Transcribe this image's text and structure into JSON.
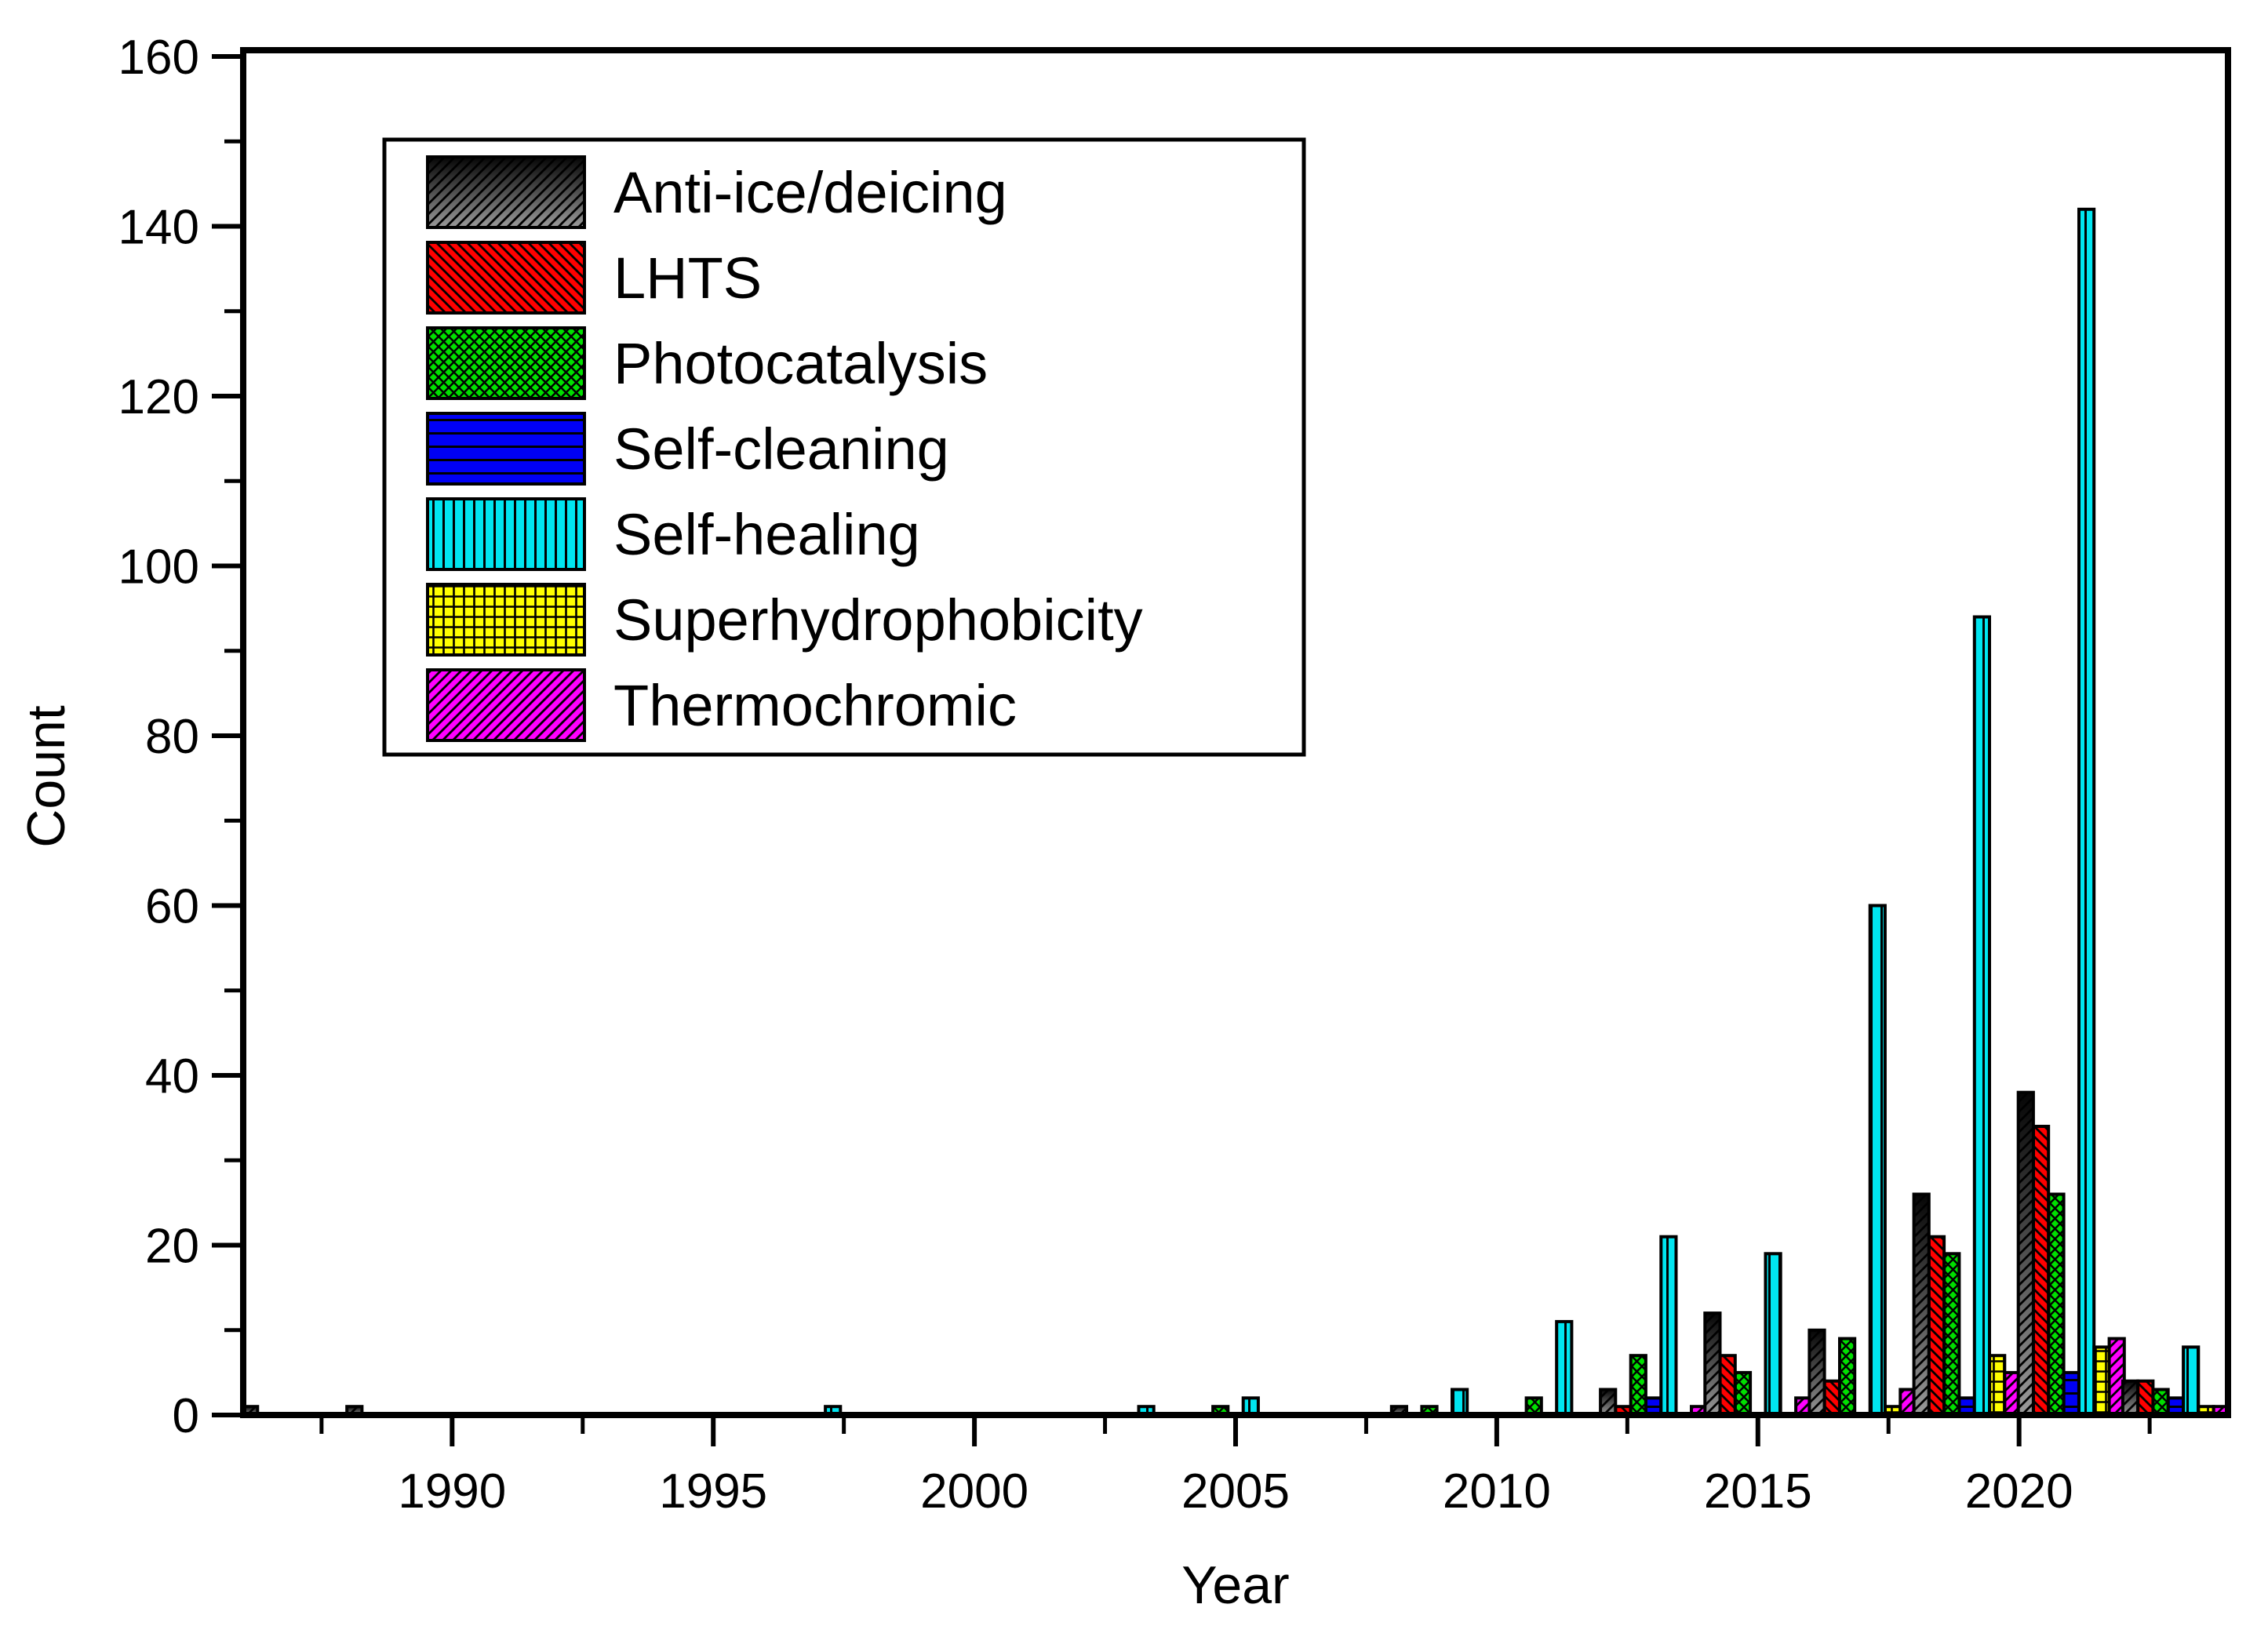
{
  "chart_data": {
    "type": "bar",
    "title": "",
    "xlabel": "Year",
    "ylabel": "Count",
    "x_range": [
      1986,
      2024
    ],
    "ylim": [
      0,
      160
    ],
    "grid": false,
    "legend_position": "top-left",
    "x_major_ticks": [
      1990,
      1995,
      2000,
      2005,
      2010,
      2015,
      2020
    ],
    "x_minor_ticks": [
      1987.5,
      1992.5,
      1997.5,
      2002.5,
      2007.5,
      2012.5,
      2017.5,
      2022.5
    ],
    "y_major_ticks": [
      0,
      20,
      40,
      60,
      80,
      100,
      120,
      140,
      160
    ],
    "y_minor_ticks": [
      10,
      30,
      50,
      70,
      90,
      110,
      130,
      150
    ],
    "categories": [
      1987,
      1989,
      1997,
      2003,
      2005,
      2009,
      2011,
      2013,
      2015,
      2017,
      2019,
      2021,
      2023
    ],
    "series": [
      {
        "name": "Anti-ice/deicing",
        "color": "gradient:#050505-#9a9a9a",
        "pattern": "diagonal-forward",
        "values": [
          1,
          1,
          0,
          0,
          0,
          1,
          0,
          3,
          12,
          10,
          26,
          38,
          4
        ]
      },
      {
        "name": "LHTS",
        "color": "#ff0000",
        "pattern": "diagonal-back",
        "values": [
          0,
          0,
          0,
          0,
          0,
          0,
          0,
          1,
          7,
          4,
          21,
          34,
          4
        ]
      },
      {
        "name": "Photocatalysis",
        "color": "#00df00",
        "pattern": "cross-diagonal",
        "values": [
          0,
          0,
          0,
          0,
          1,
          1,
          2,
          7,
          5,
          9,
          19,
          26,
          3
        ]
      },
      {
        "name": "Self-cleaning",
        "color": "#0000f5",
        "pattern": "horizontal-lines",
        "values": [
          0,
          0,
          0,
          0,
          0,
          0,
          0,
          2,
          0,
          0,
          2,
          5,
          2
        ]
      },
      {
        "name": "Self-healing",
        "color": "#00e5f0",
        "pattern": "vertical-lines",
        "values": [
          0,
          0,
          1,
          1,
          2,
          3,
          11,
          21,
          19,
          60,
          94,
          142,
          8
        ]
      },
      {
        "name": "Superhydrophobicity",
        "color": "#ffff00",
        "pattern": "grid",
        "values": [
          0,
          0,
          0,
          0,
          0,
          0,
          0,
          0,
          0,
          1,
          7,
          8,
          1
        ]
      },
      {
        "name": "Thermochromic",
        "color": "#ff00ff",
        "pattern": "diagonal-forward",
        "values": [
          0,
          0,
          0,
          0,
          0,
          0,
          0,
          1,
          2,
          3,
          5,
          9,
          1
        ]
      }
    ]
  }
}
